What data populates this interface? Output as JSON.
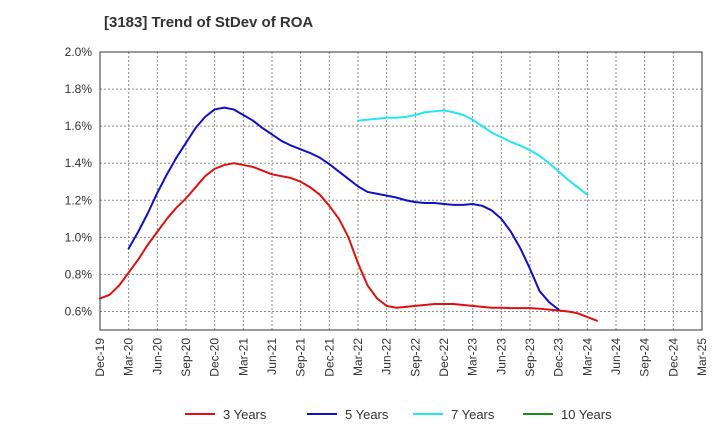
{
  "title": "[3183]  Trend of StDev of ROA",
  "chart_data": {
    "type": "line",
    "title": "[3183]  Trend of StDev of ROA",
    "xlabel": "",
    "ylabel": "",
    "x_tick_labels": [
      "Dec-19",
      "Mar-20",
      "Jun-20",
      "Sep-20",
      "Dec-20",
      "Mar-21",
      "Jun-21",
      "Sep-21",
      "Dec-21",
      "Mar-22",
      "Jun-22",
      "Sep-22",
      "Dec-22",
      "Mar-23",
      "Jun-23",
      "Sep-23",
      "Dec-23",
      "Mar-24",
      "Jun-24",
      "Sep-24",
      "Dec-24",
      "Mar-25"
    ],
    "y_tick_labels": [
      "0.6%",
      "0.8%",
      "1.0%",
      "1.2%",
      "1.4%",
      "1.6%",
      "1.8%",
      "2.0%"
    ],
    "ylim": [
      0.5,
      2.0
    ],
    "grid": true,
    "legend_position": "bottom",
    "series": [
      {
        "name": "3 Years",
        "color": "#e01010",
        "start_month": 0,
        "values": [
          0.67,
          0.69,
          0.74,
          0.81,
          0.88,
          0.96,
          1.03,
          1.1,
          1.16,
          1.21,
          1.27,
          1.33,
          1.37,
          1.39,
          1.4,
          1.39,
          1.38,
          1.36,
          1.34,
          1.33,
          1.32,
          1.3,
          1.27,
          1.23,
          1.17,
          1.1,
          1.0,
          0.86,
          0.74,
          0.67,
          0.63,
          0.62,
          0.625,
          0.63,
          0.635,
          0.64,
          0.64,
          0.64,
          0.635,
          0.63,
          0.625,
          0.62,
          0.62,
          0.618,
          0.618,
          0.618,
          0.615,
          0.61,
          0.605,
          0.6,
          0.59,
          0.57,
          0.55
        ]
      },
      {
        "name": "5 Years",
        "color": "#1010c8",
        "start_month": 3,
        "values": [
          0.94,
          1.03,
          1.13,
          1.24,
          1.34,
          1.43,
          1.51,
          1.59,
          1.65,
          1.69,
          1.7,
          1.69,
          1.66,
          1.63,
          1.59,
          1.555,
          1.52,
          1.495,
          1.475,
          1.455,
          1.43,
          1.395,
          1.355,
          1.315,
          1.275,
          1.245,
          1.235,
          1.225,
          1.215,
          1.2,
          1.19,
          1.185,
          1.185,
          1.18,
          1.175,
          1.175,
          1.18,
          1.17,
          1.145,
          1.1,
          1.03,
          0.94,
          0.83,
          0.71,
          0.65,
          0.61
        ]
      },
      {
        "name": "7 Years",
        "color": "#22e6f0",
        "start_month": 27,
        "values": [
          1.63,
          1.635,
          1.64,
          1.645,
          1.645,
          1.65,
          1.66,
          1.675,
          1.68,
          1.685,
          1.675,
          1.66,
          1.635,
          1.6,
          1.565,
          1.54,
          1.515,
          1.495,
          1.47,
          1.44,
          1.4,
          1.355,
          1.31,
          1.27,
          1.23
        ]
      },
      {
        "name": "10 Years",
        "color": "#1a8a1a",
        "start_month": 0,
        "values": []
      }
    ]
  }
}
